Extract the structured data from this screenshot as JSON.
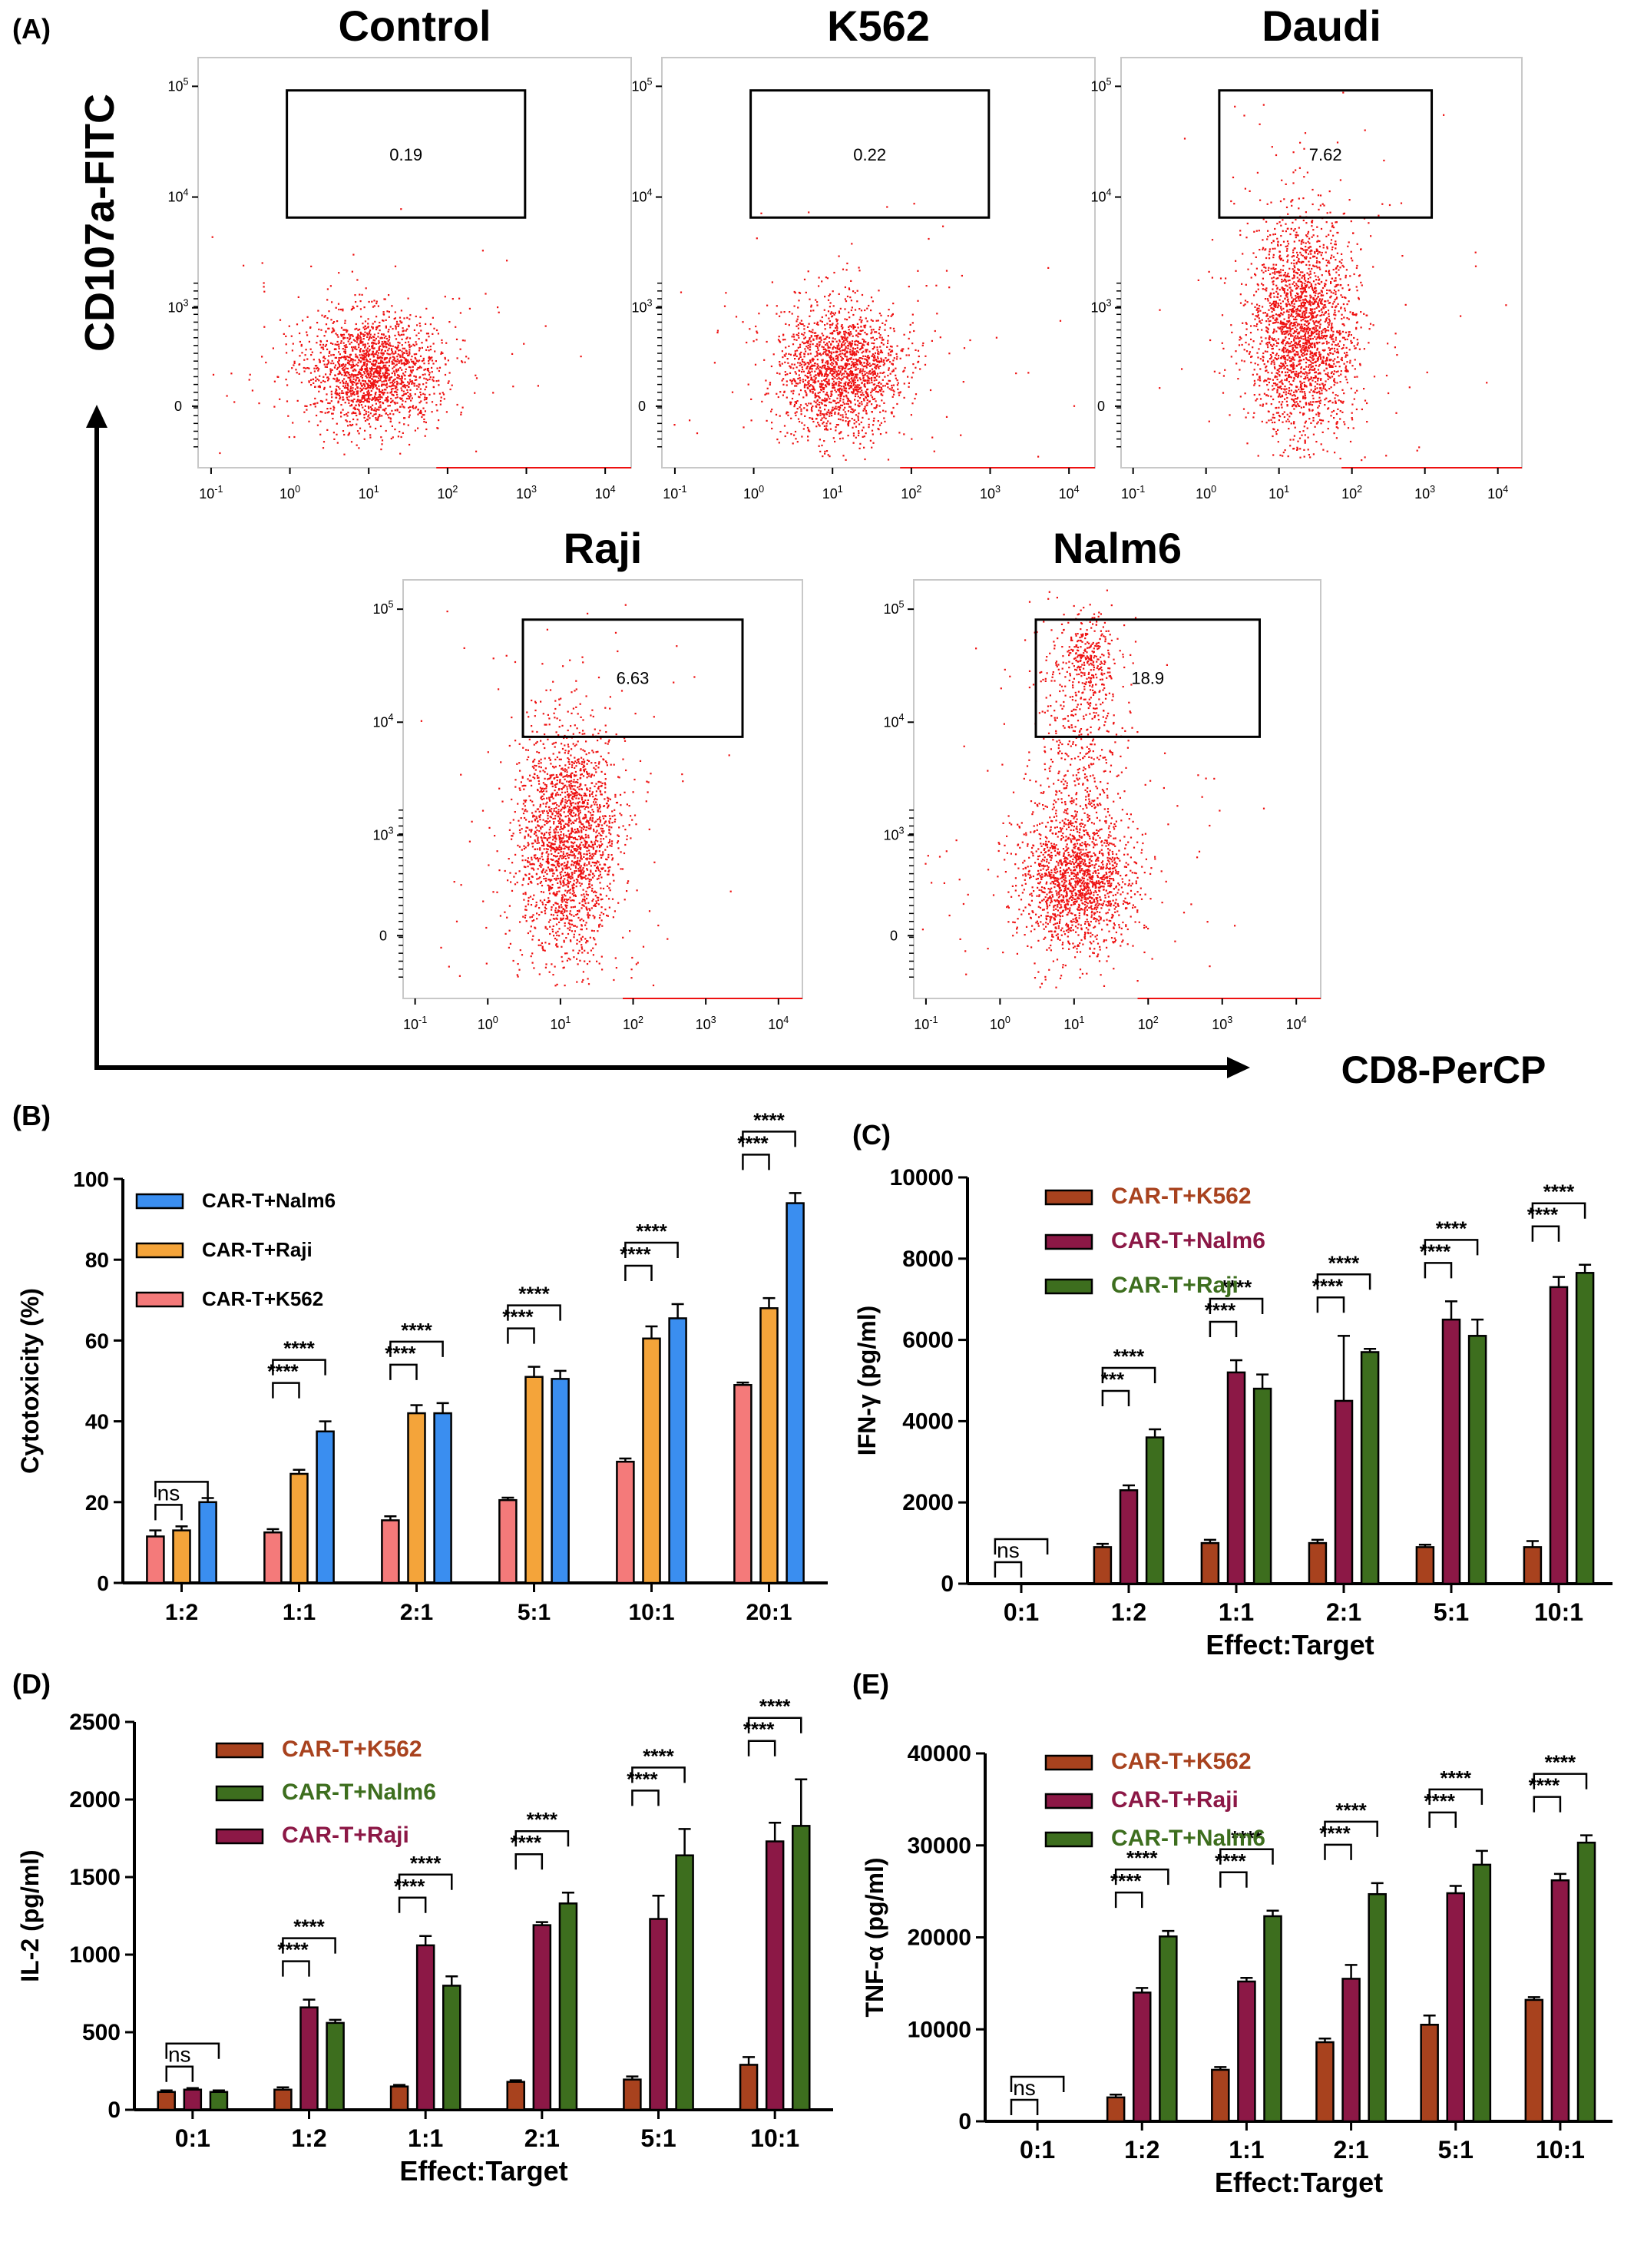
{
  "panel_labels": {
    "a": "(A)",
    "b": "(B)",
    "c": "(C)",
    "d": "(D)",
    "e": "(E)"
  },
  "flow": {
    "ylabel": "CD107a-FITC",
    "xlabel": "CD8-PerCP",
    "y_tick_labels": [
      "10^5",
      "10^4",
      "10^3",
      "0"
    ],
    "x_tick_labels": [
      "10^-1",
      "10^0",
      "10^1",
      "10^2",
      "10^3",
      "10^4"
    ],
    "dot_color": "#ee1111",
    "plots": [
      {
        "title": "Control",
        "gate_value": "0.19"
      },
      {
        "title": "K562",
        "gate_value": "0.22"
      },
      {
        "title": "Daudi",
        "gate_value": "7.62"
      },
      {
        "title": "Raji",
        "gate_value": "6.63"
      },
      {
        "title": "Nalm6",
        "gate_value": "18.9"
      }
    ]
  },
  "chart_data": [
    {
      "panel": "(B)",
      "type": "bar",
      "ylabel": "Cytotoxicity (%)",
      "xlabel": "",
      "ylim": [
        0,
        100
      ],
      "yticks": [
        0,
        20,
        40,
        60,
        80,
        100
      ],
      "categories": [
        "1:2",
        "1:1",
        "2:1",
        "5:1",
        "10:1",
        "20:1"
      ],
      "series": [
        {
          "name": "CAR-T+K562",
          "color": "#f47a7a",
          "values": [
            11.5,
            12.5,
            15.5,
            20.5,
            30,
            49
          ],
          "errors": [
            1.5,
            0.8,
            1,
            0.6,
            0.8,
            0.6
          ]
        },
        {
          "name": "CAR-T+Raji",
          "color": "#f4a43a",
          "values": [
            13,
            27,
            42,
            51,
            60.5,
            68
          ],
          "errors": [
            1,
            1,
            2,
            2.5,
            3,
            2.5
          ]
        },
        {
          "name": "CAR-T+Nalm6",
          "color": "#3a8ef0",
          "values": [
            20,
            37.5,
            42,
            50.5,
            65.5,
            94
          ],
          "errors": [
            1,
            2.5,
            2.5,
            2,
            3.5,
            2.5
          ]
        }
      ],
      "legend_order": [
        2,
        1,
        0
      ],
      "comparisons": [
        {
          "label": "ns",
          "text": "ns"
        },
        {
          "label": "****",
          "text": "****"
        }
      ]
    },
    {
      "panel": "(C)",
      "type": "bar",
      "ylabel": "IFN-γ (pg/ml)",
      "xlabel": "Effect:Target",
      "ylim": [
        0,
        10000
      ],
      "yticks": [
        0,
        2000,
        4000,
        6000,
        8000,
        10000
      ],
      "categories": [
        "0:1",
        "1:2",
        "1:1",
        "2:1",
        "5:1",
        "10:1"
      ],
      "series": [
        {
          "name": "CAR-T+K562",
          "color": "#a8421e",
          "values": [
            0,
            900,
            1000,
            1000,
            900,
            900
          ],
          "errors": [
            0,
            80,
            80,
            80,
            60,
            150
          ]
        },
        {
          "name": "CAR-T+Nalm6",
          "color": "#8c1846",
          "values": [
            0,
            2300,
            5200,
            4500,
            6500,
            7300
          ],
          "errors": [
            0,
            120,
            300,
            1600,
            450,
            250
          ]
        },
        {
          "name": "CAR-T+Raji",
          "color": "#3d6e1e",
          "values": [
            0,
            3600,
            4800,
            5700,
            6100,
            7650
          ],
          "errors": [
            0,
            200,
            350,
            80,
            400,
            200
          ]
        }
      ],
      "legend_order": [
        0,
        1,
        2
      ],
      "comparisons": [
        {
          "label": "ns",
          "text": "ns"
        },
        {
          "label": "***",
          "text": "***"
        },
        {
          "label": "****",
          "text": "****"
        }
      ]
    },
    {
      "panel": "(D)",
      "type": "bar",
      "ylabel": "IL-2 (pg/ml)",
      "xlabel": "Effect:Target",
      "ylim": [
        0,
        2500
      ],
      "yticks": [
        0,
        500,
        1000,
        1500,
        2000,
        2500
      ],
      "categories": [
        "0:1",
        "1:2",
        "1:1",
        "2:1",
        "5:1",
        "10:1"
      ],
      "series": [
        {
          "name": "CAR-T+K562",
          "color": "#a8421e",
          "values": [
            115,
            130,
            150,
            180,
            195,
            290
          ],
          "errors": [
            10,
            15,
            10,
            10,
            20,
            50
          ]
        },
        {
          "name": "CAR-T+Raji",
          "color": "#8c1846",
          "values": [
            130,
            660,
            1060,
            1190,
            1230,
            1730
          ],
          "errors": [
            10,
            50,
            60,
            20,
            150,
            120
          ]
        },
        {
          "name": "CAR-T+Nalm6",
          "color": "#3d6e1e",
          "values": [
            115,
            560,
            800,
            1330,
            1640,
            1830
          ],
          "errors": [
            10,
            20,
            60,
            70,
            170,
            300
          ]
        }
      ],
      "legend_order": [
        0,
        2,
        1
      ],
      "comparisons": [
        {
          "label": "ns",
          "text": "ns"
        },
        {
          "label": "****",
          "text": "****"
        }
      ]
    },
    {
      "panel": "(E)",
      "type": "bar",
      "ylabel": "TNF-α (pg/ml)",
      "xlabel": "Effect:Target",
      "ylim": [
        0,
        40000
      ],
      "yticks": [
        0,
        10000,
        20000,
        30000,
        40000
      ],
      "categories": [
        "0:1",
        "1:2",
        "1:1",
        "2:1",
        "5:1",
        "10:1"
      ],
      "series": [
        {
          "name": "CAR-T+K562",
          "color": "#a8421e",
          "values": [
            0,
            2600,
            5600,
            8600,
            10500,
            13200
          ],
          "errors": [
            0,
            300,
            300,
            400,
            1000,
            300
          ]
        },
        {
          "name": "CAR-T+Raji",
          "color": "#8c1846",
          "values": [
            0,
            14000,
            15200,
            15500,
            24800,
            26200
          ],
          "errors": [
            0,
            500,
            400,
            1500,
            800,
            700
          ]
        },
        {
          "name": "CAR-T+Nalm6",
          "color": "#3d6e1e",
          "values": [
            0,
            20100,
            22300,
            24700,
            27900,
            30300
          ],
          "errors": [
            0,
            600,
            600,
            1200,
            1500,
            800
          ]
        }
      ],
      "legend_order": [
        0,
        1,
        2
      ],
      "comparisons": [
        {
          "label": "ns",
          "text": "ns"
        },
        {
          "label": "****",
          "text": "****"
        }
      ]
    }
  ]
}
